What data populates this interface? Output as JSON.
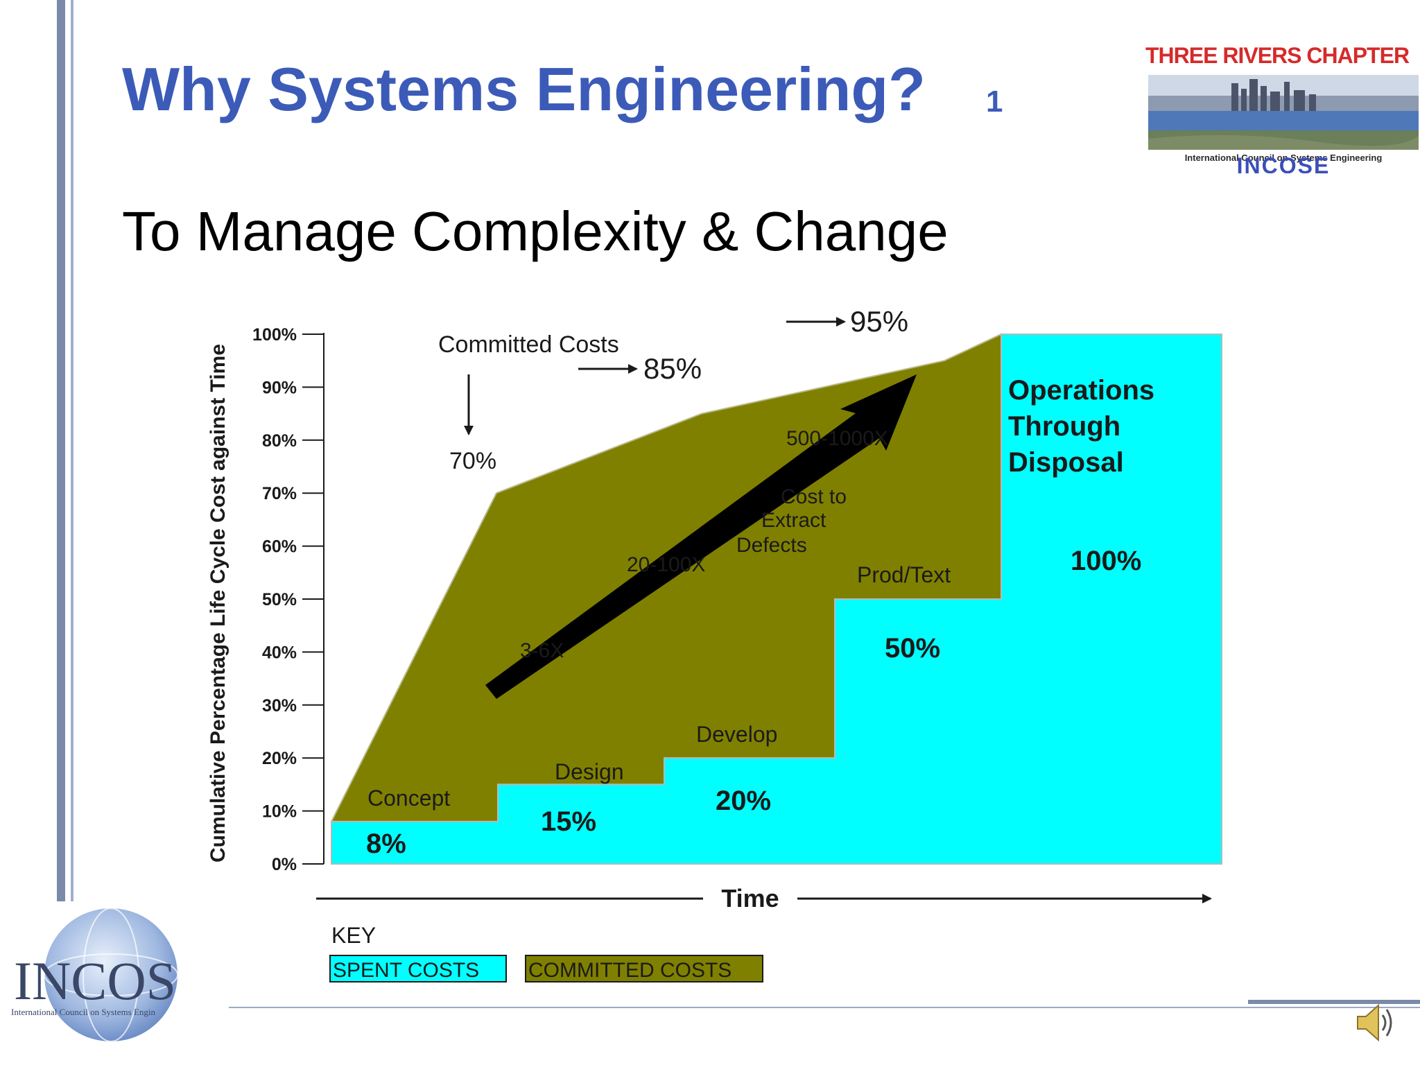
{
  "slide": {
    "title": "Why Systems Engineering?",
    "number": "1",
    "subtitle": "To Manage Complexity & Change"
  },
  "chapter_logo": {
    "name": "THREE RIVERS CHAPTER",
    "caption": "International Council on Systems Engineering",
    "acronym": "INCOSE"
  },
  "corner_logo": {
    "word": "INCOS",
    "caption": "International Council on Systems Engin"
  },
  "colors": {
    "title": "#3c5bb8",
    "spent": "#00ffff",
    "committed": "#808000",
    "chapter_red": "#d62a2a"
  },
  "chart_data": {
    "type": "area",
    "ylabel": "Cumulative Percentage Life Cycle Cost against Time",
    "xlabel": "Time",
    "ylim": [
      0,
      100
    ],
    "y_ticks": [
      "0%",
      "10%",
      "20%",
      "30%",
      "40%",
      "50%",
      "60%",
      "70%",
      "80%",
      "90%",
      "100%"
    ],
    "grid": false,
    "legend": {
      "position": "bottom-left",
      "title": "KEY",
      "entries": [
        "SPENT COSTS",
        "COMMITTED COSTS"
      ]
    },
    "phases": [
      {
        "name": "Concept",
        "spent": 8,
        "spent_label": "8%"
      },
      {
        "name": "Design",
        "spent": 15,
        "spent_label": "15%"
      },
      {
        "name": "Develop",
        "spent": 20,
        "spent_label": "20%"
      },
      {
        "name": "Prod/Text",
        "spent": 50,
        "spent_label": "50%"
      },
      {
        "name": "Operations Through Disposal",
        "spent": 100,
        "spent_label": "100%"
      }
    ],
    "series": [
      {
        "name": "SPENT COSTS",
        "values": [
          8,
          15,
          20,
          50,
          100
        ]
      },
      {
        "name": "COMMITTED COSTS",
        "values": [
          70,
          85,
          95,
          100,
          100
        ]
      }
    ],
    "annotations": {
      "committed_title": "Committed Costs",
      "committed_points": [
        "70%",
        "85%",
        "95%"
      ],
      "defect_multipliers": [
        "3-6X",
        "20-100X",
        "500-1000X"
      ],
      "defect_label": [
        "Cost to",
        "Extract",
        "Defects"
      ],
      "last_phase_lines": [
        "Operations",
        "Through",
        "Disposal"
      ]
    }
  }
}
